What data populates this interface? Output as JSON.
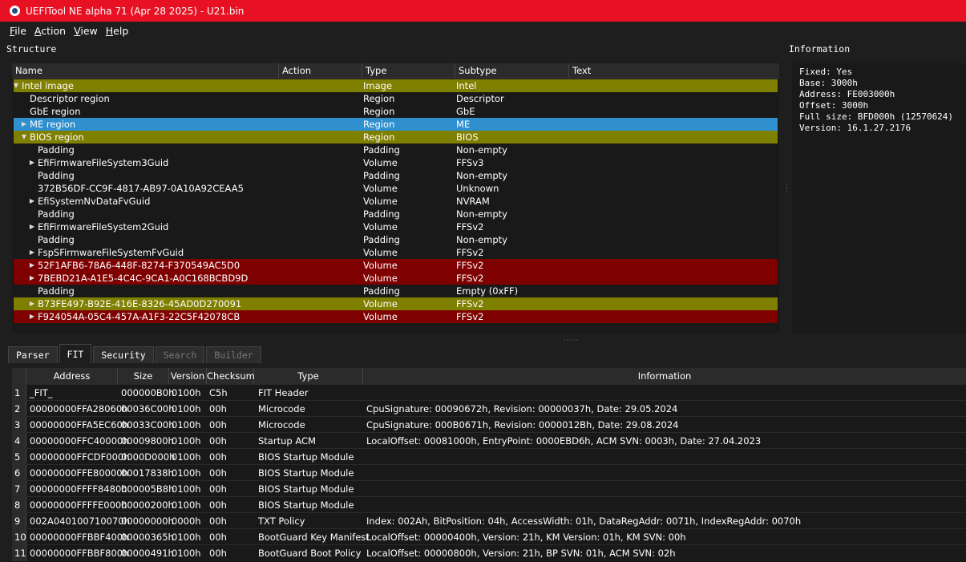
{
  "window": {
    "title": "UEFITool NE alpha 71 (Apr 28 2025) - U21.bin"
  },
  "menu": [
    {
      "underline": "F",
      "rest": "ile"
    },
    {
      "underline": "A",
      "rest": "ction"
    },
    {
      "underline": "V",
      "rest": "iew"
    },
    {
      "underline": "H",
      "rest": "elp"
    }
  ],
  "structure": {
    "label": "Structure",
    "columns": [
      "Name",
      "Action",
      "Type",
      "Subtype",
      "Text"
    ],
    "rows": [
      {
        "name": "Intel image",
        "type": "Image",
        "subtype": "Intel",
        "level": 0,
        "expander": "open",
        "highlight": "#7f7f00"
      },
      {
        "name": "Descriptor region",
        "type": "Region",
        "subtype": "Descriptor",
        "level": 1,
        "expander": "none",
        "highlight": ""
      },
      {
        "name": "GbE region",
        "type": "Region",
        "subtype": "GbE",
        "level": 1,
        "expander": "none",
        "highlight": ""
      },
      {
        "name": "ME region",
        "type": "Region",
        "subtype": "ME",
        "level": 1,
        "expander": "closed",
        "highlight": "#2f8fcf"
      },
      {
        "name": "BIOS region",
        "type": "Region",
        "subtype": "BIOS",
        "level": 1,
        "expander": "open",
        "highlight": "#7f7f00"
      },
      {
        "name": "Padding",
        "type": "Padding",
        "subtype": "Non-empty",
        "level": 2,
        "expander": "none",
        "highlight": ""
      },
      {
        "name": "EfiFirmwareFileSystem3Guid",
        "type": "Volume",
        "subtype": "FFSv3",
        "level": 2,
        "expander": "closed",
        "highlight": ""
      },
      {
        "name": "Padding",
        "type": "Padding",
        "subtype": "Non-empty",
        "level": 2,
        "expander": "none",
        "highlight": ""
      },
      {
        "name": "372B56DF-CC9F-4817-AB97-0A10A92CEAA5",
        "type": "Volume",
        "subtype": "Unknown",
        "level": 2,
        "expander": "none",
        "highlight": ""
      },
      {
        "name": "EfiSystemNvDataFvGuid",
        "type": "Volume",
        "subtype": "NVRAM",
        "level": 2,
        "expander": "closed",
        "highlight": ""
      },
      {
        "name": "Padding",
        "type": "Padding",
        "subtype": "Non-empty",
        "level": 2,
        "expander": "none",
        "highlight": ""
      },
      {
        "name": "EfiFirmwareFileSystem2Guid",
        "type": "Volume",
        "subtype": "FFSv2",
        "level": 2,
        "expander": "closed",
        "highlight": ""
      },
      {
        "name": "Padding",
        "type": "Padding",
        "subtype": "Non-empty",
        "level": 2,
        "expander": "none",
        "highlight": ""
      },
      {
        "name": "FspSFirmwareFileSystemFvGuid",
        "type": "Volume",
        "subtype": "FFSv2",
        "level": 2,
        "expander": "closed",
        "highlight": ""
      },
      {
        "name": "52F1AFB6-78A6-448F-8274-F370549AC5D0",
        "type": "Volume",
        "subtype": "FFSv2",
        "level": 2,
        "expander": "closed",
        "highlight": "#7f0000"
      },
      {
        "name": "7BEBD21A-A1E5-4C4C-9CA1-A0C168BCBD9D",
        "type": "Volume",
        "subtype": "FFSv2",
        "level": 2,
        "expander": "closed",
        "highlight": "#7f0000"
      },
      {
        "name": "Padding",
        "type": "Padding",
        "subtype": "Empty (0xFF)",
        "level": 2,
        "expander": "none",
        "highlight": ""
      },
      {
        "name": "B73FE497-B92E-416E-8326-45AD0D270091",
        "type": "Volume",
        "subtype": "FFSv2",
        "level": 2,
        "expander": "closed",
        "highlight": "#7f7f00"
      },
      {
        "name": "F924054A-05C4-457A-A1F3-22C5F42078CB",
        "type": "Volume",
        "subtype": "FFSv2",
        "level": 2,
        "expander": "closed",
        "highlight": "#7f0000"
      }
    ]
  },
  "information": {
    "label": "Information",
    "text": "Fixed: Yes\nBase: 3000h\nAddress: FE003000h\nOffset: 3000h\nFull size: BFD000h (12570624)\nVersion: 16.1.27.2176"
  },
  "tabs": [
    {
      "label": "Parser",
      "state": "normal"
    },
    {
      "label": "FIT",
      "state": "active"
    },
    {
      "label": "Security",
      "state": "normal"
    },
    {
      "label": "Search",
      "state": "disabled"
    },
    {
      "label": "Builder",
      "state": "disabled"
    }
  ],
  "fit": {
    "columns": [
      "Address",
      "Size",
      "Version",
      "Checksum",
      "Type",
      "Information"
    ],
    "rows": [
      {
        "n": "1",
        "address": "_FIT_",
        "size": "000000B0h",
        "version": "0100h",
        "checksum": "C5h",
        "type": "FIT Header",
        "info": ""
      },
      {
        "n": "2",
        "address": "00000000FFA28060h",
        "size": "00036C00h",
        "version": "0100h",
        "checksum": "00h",
        "type": "Microcode",
        "info": "CpuSignature: 00090672h, Revision: 00000037h, Date: 29.05.2024"
      },
      {
        "n": "3",
        "address": "00000000FFA5EC60h",
        "size": "00033C00h",
        "version": "0100h",
        "checksum": "00h",
        "type": "Microcode",
        "info": "CpuSignature: 000B0671h, Revision: 0000012Bh, Date: 29.08.2024"
      },
      {
        "n": "4",
        "address": "00000000FFC40000h",
        "size": "00009800h",
        "version": "0100h",
        "checksum": "00h",
        "type": "Startup ACM",
        "info": "LocalOffset: 00081000h, EntryPoint: 0000EBD6h, ACM SVN: 0003h, Date: 27.04.2023"
      },
      {
        "n": "5",
        "address": "00000000FFCDF000h",
        "size": "0000D000h",
        "version": "0100h",
        "checksum": "00h",
        "type": "BIOS Startup Module",
        "info": ""
      },
      {
        "n": "6",
        "address": "00000000FFE80000h",
        "size": "00017838h",
        "version": "0100h",
        "checksum": "00h",
        "type": "BIOS Startup Module",
        "info": ""
      },
      {
        "n": "7",
        "address": "00000000FFFF8480h",
        "size": "000005B8h",
        "version": "0100h",
        "checksum": "00h",
        "type": "BIOS Startup Module",
        "info": ""
      },
      {
        "n": "8",
        "address": "00000000FFFFE000h",
        "size": "00000200h",
        "version": "0100h",
        "checksum": "00h",
        "type": "BIOS Startup Module",
        "info": ""
      },
      {
        "n": "9",
        "address": "002A040100710070h",
        "size": "00000000h",
        "version": "0000h",
        "checksum": "00h",
        "type": "TXT Policy",
        "info": "Index: 002Ah, BitPosition: 04h, AccessWidth: 01h, DataRegAddr: 0071h, IndexRegAddr: 0070h"
      },
      {
        "n": "10",
        "address": "00000000FFBBF400h",
        "size": "00000365h",
        "version": "0100h",
        "checksum": "00h",
        "type": "BootGuard Key Manifest",
        "info": "LocalOffset: 00000400h, Version: 21h, KM Version: 01h, KM SVN: 00h"
      },
      {
        "n": "11",
        "address": "00000000FFBBF800h",
        "size": "00000491h",
        "version": "0100h",
        "checksum": "00h",
        "type": "BootGuard Boot Policy",
        "info": "LocalOffset: 00000800h, Version: 21h, BP SVN: 01h, ACM SVN: 02h"
      }
    ]
  }
}
